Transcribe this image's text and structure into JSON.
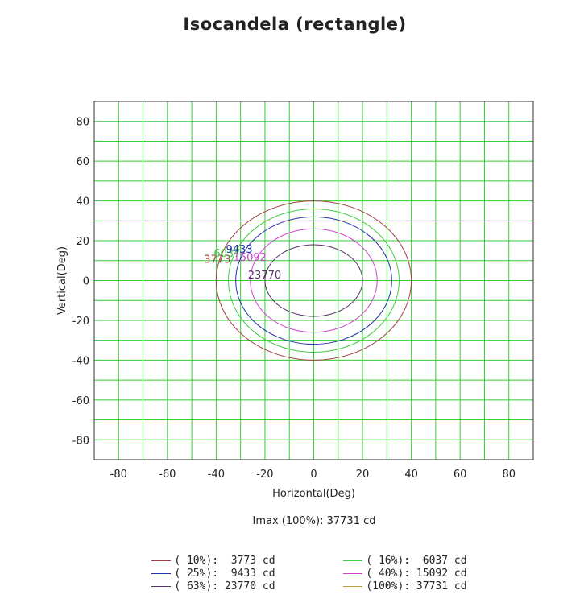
{
  "chart_data": {
    "type": "line",
    "title": "Isocandela (rectangle)",
    "xlabel": "Horizontal(Deg)",
    "ylabel": "Vertical(Deg)",
    "xlim": [
      -90,
      90
    ],
    "ylim": [
      -90,
      90
    ],
    "x_ticks": [
      "-80",
      "-60",
      "-40",
      "-20",
      "0",
      "20",
      "40",
      "60",
      "80"
    ],
    "y_ticks": [
      "80",
      "60",
      "40",
      "20",
      "0",
      "-20",
      "-40",
      "-60",
      "-80"
    ],
    "grid": true,
    "grid_step": 10,
    "grid_color": "#33cc33",
    "imax_text": "Imax (100%): 37731 cd",
    "legend_placement": "bottom",
    "series": [
      {
        "name": "( 10%):  3773 cd",
        "color": "#a04040",
        "center": [
          0,
          0
        ],
        "h_radius": 40,
        "v_radius": 40,
        "label": "3773",
        "label_at": [
          -45,
          9
        ]
      },
      {
        "name": "( 16%):  6037 cd",
        "color": "#44cc44",
        "center": [
          0,
          0
        ],
        "h_radius": 35,
        "v_radius": 36,
        "label": "6037",
        "label_at": [
          -41,
          12
        ]
      },
      {
        "name": "( 25%):  9433 cd",
        "color": "#2233aa",
        "center": [
          0,
          0
        ],
        "h_radius": 32,
        "v_radius": 32,
        "label": "9433",
        "label_at": [
          -36,
          14
        ]
      },
      {
        "name": "( 40%): 15092 cd",
        "color": "#cc44cc",
        "center": [
          0,
          0
        ],
        "h_radius": 26,
        "v_radius": 26,
        "label": "15092",
        "label_at": [
          -33,
          10
        ]
      },
      {
        "name": "( 63%): 23770 cd",
        "color": "#553366",
        "center": [
          0,
          0
        ],
        "h_radius": 20,
        "v_radius": 18,
        "label": "23770",
        "label_at": [
          -27,
          1
        ]
      },
      {
        "name": "(100%): 37731 cd",
        "color": "#b8a040",
        "center": [
          0,
          0
        ],
        "h_radius": 0,
        "v_radius": 0,
        "label": "",
        "label_at": [
          0,
          0
        ]
      }
    ]
  }
}
